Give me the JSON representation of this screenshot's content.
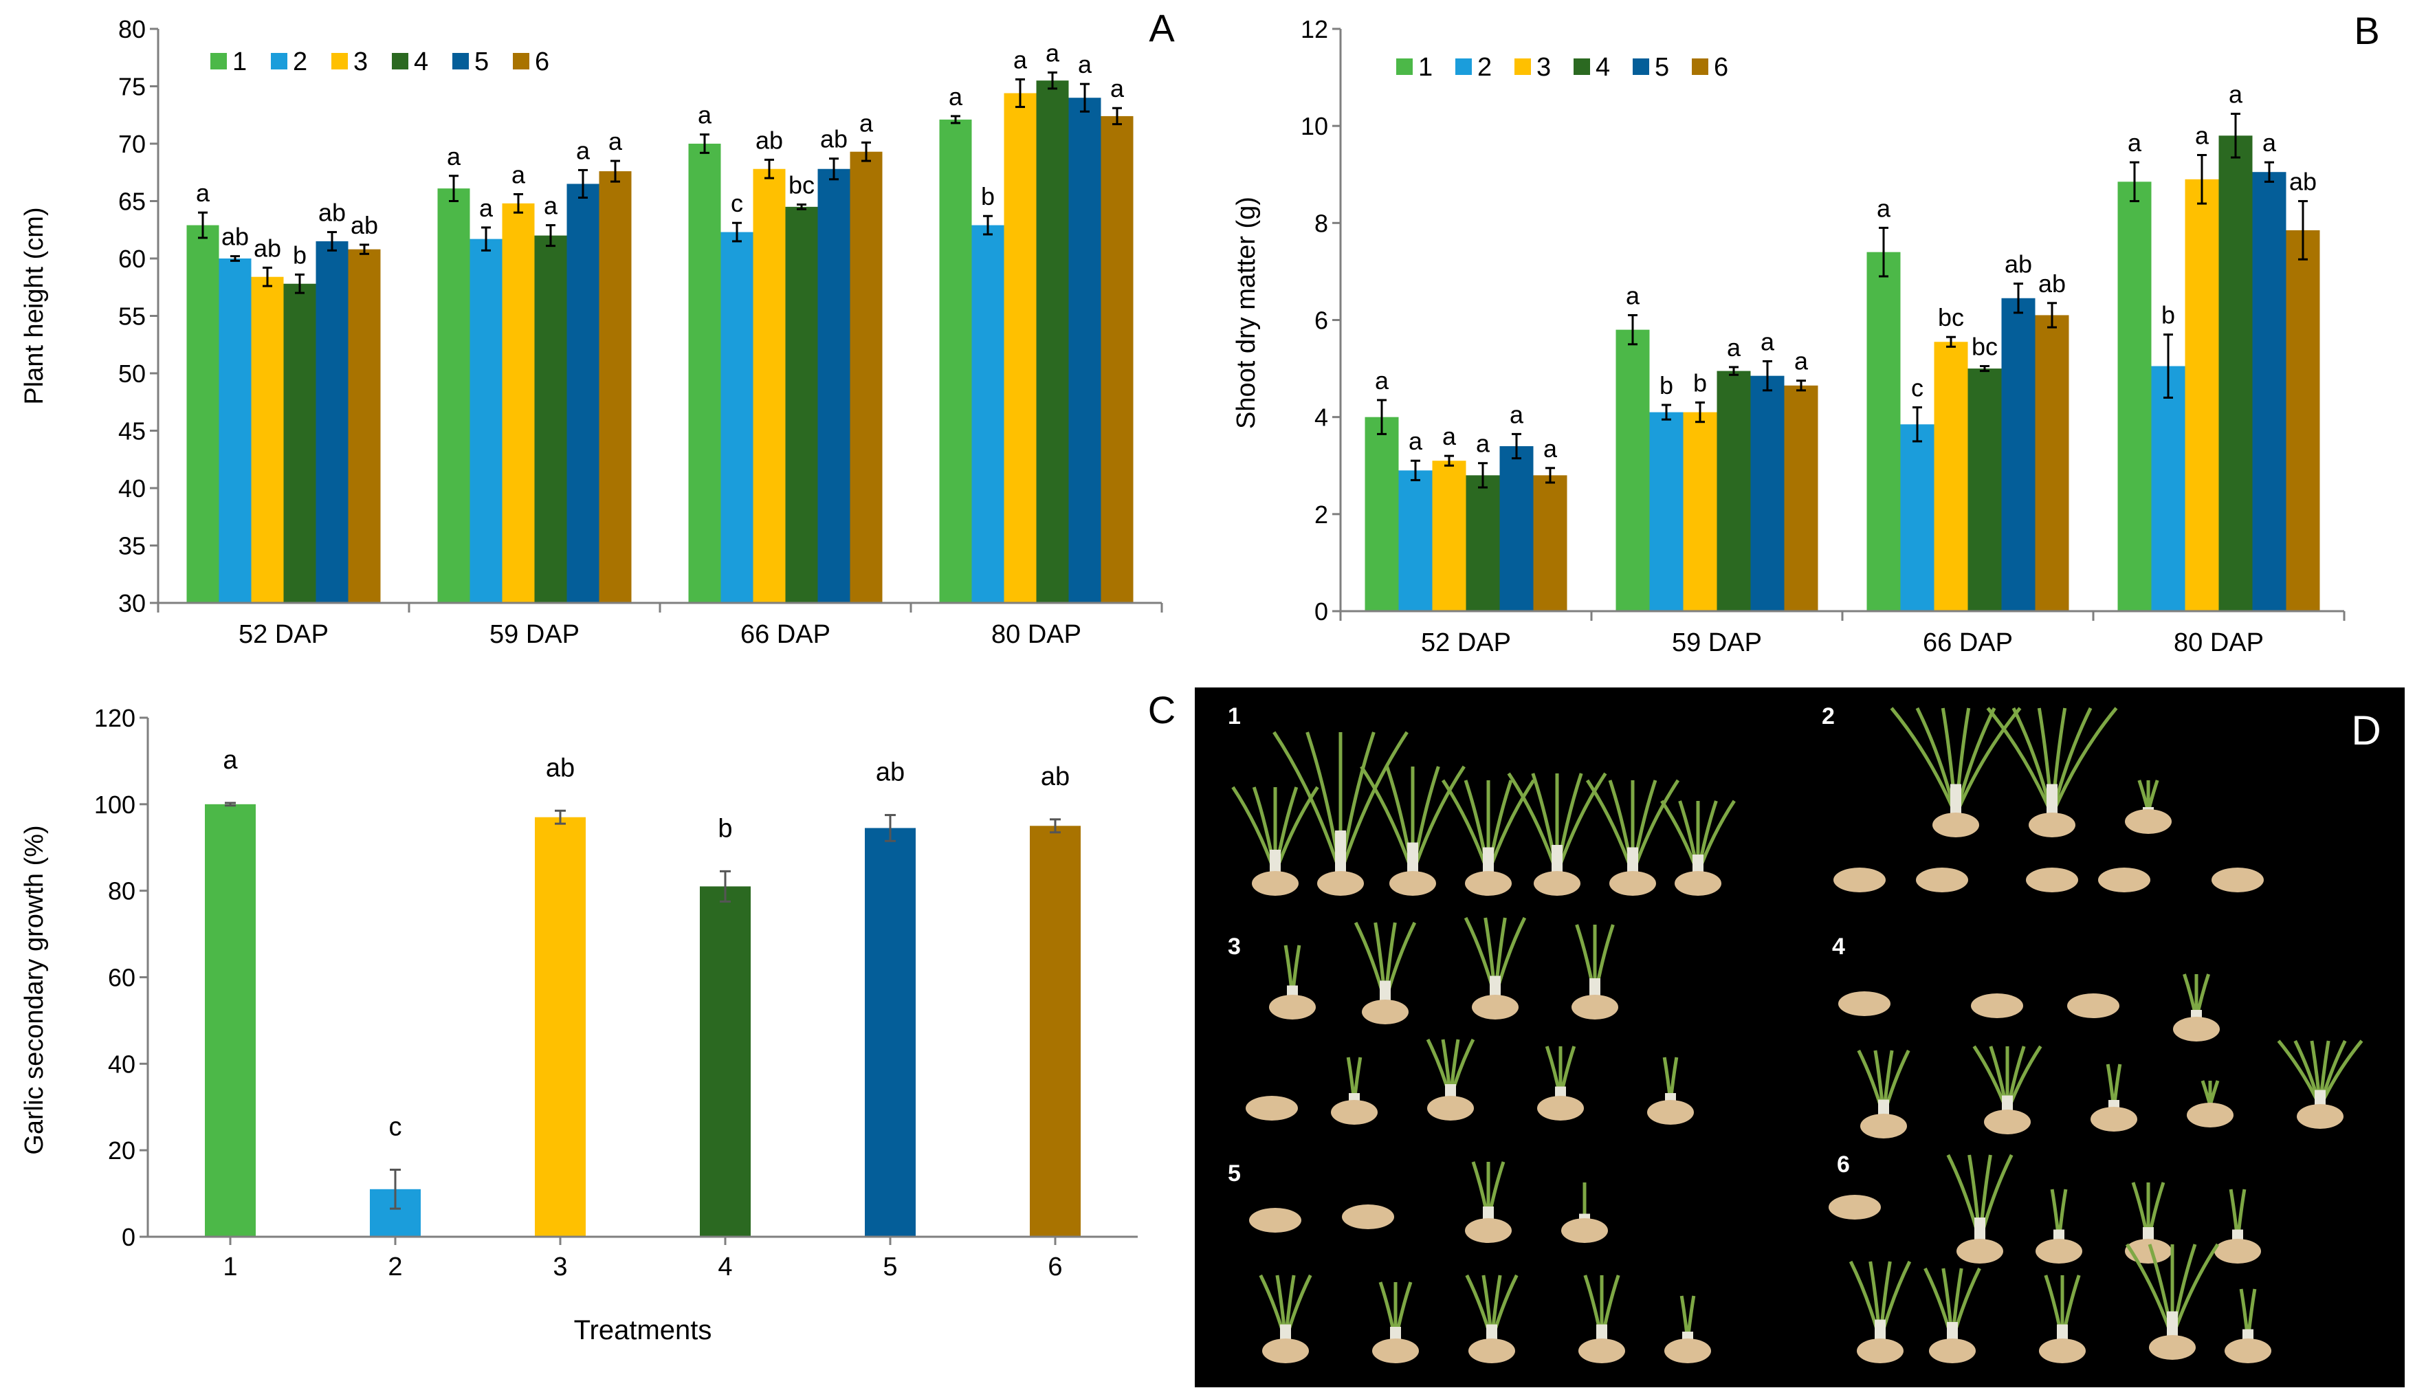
{
  "colors": {
    "t1": "#4CB848",
    "t2": "#1B9DDB",
    "t3": "#FFC000",
    "t4": "#2B6921",
    "t5": "#045E99",
    "t6": "#A97300",
    "axis": "#7f7f7f",
    "photo_bg": "#000000",
    "bulb": "#dcbf95",
    "sprout": "#7ea845"
  },
  "chart_data": [
    {
      "id": "A",
      "panel_label": "A",
      "type": "bar",
      "title": "",
      "xlabel": "",
      "ylabel": "Plant height (cm)",
      "ylim": [
        30,
        80
      ],
      "yticks": [
        "30",
        "35",
        "40",
        "45",
        "50",
        "55",
        "60",
        "65",
        "70",
        "75",
        "80"
      ],
      "legend_position": "top-left",
      "categories": [
        "52 DAP",
        "59 DAP",
        "66 DAP",
        "80 DAP"
      ],
      "series": [
        {
          "name": "1",
          "values": [
            62.9,
            66.1,
            70.0,
            72.1
          ],
          "errors": [
            1.1,
            1.1,
            0.8,
            0.3
          ],
          "letters": [
            "a",
            "a",
            "a",
            "a"
          ]
        },
        {
          "name": "2",
          "values": [
            60.0,
            61.7,
            62.3,
            62.9
          ],
          "errors": [
            0.2,
            1.0,
            0.8,
            0.8
          ],
          "letters": [
            "ab",
            "a",
            "c",
            "b"
          ]
        },
        {
          "name": "3",
          "values": [
            58.4,
            64.8,
            67.8,
            74.4
          ],
          "errors": [
            0.8,
            0.8,
            0.8,
            1.2
          ],
          "letters": [
            "ab",
            "a",
            "ab",
            "a"
          ]
        },
        {
          "name": "4",
          "values": [
            57.8,
            62.0,
            64.5,
            75.5
          ],
          "errors": [
            0.8,
            0.9,
            0.2,
            0.7
          ],
          "letters": [
            "b",
            "a",
            "bc",
            "a"
          ]
        },
        {
          "name": "5",
          "values": [
            61.5,
            66.5,
            67.8,
            74.0
          ],
          "errors": [
            0.8,
            1.2,
            0.9,
            1.2
          ],
          "letters": [
            "ab",
            "a",
            "ab",
            "a"
          ]
        },
        {
          "name": "6",
          "values": [
            60.8,
            67.6,
            69.3,
            72.4
          ],
          "errors": [
            0.4,
            0.9,
            0.8,
            0.7
          ],
          "letters": [
            "ab",
            "a",
            "a",
            "a"
          ]
        }
      ]
    },
    {
      "id": "B",
      "panel_label": "B",
      "type": "bar",
      "title": "",
      "xlabel": "",
      "ylabel": "Shoot dry matter (g)",
      "ylim": [
        0,
        12
      ],
      "yticks": [
        "0",
        "2",
        "4",
        "6",
        "8",
        "10",
        "12"
      ],
      "legend_position": "top-left",
      "categories": [
        "52 DAP",
        "59 DAP",
        "66 DAP",
        "80 DAP"
      ],
      "series": [
        {
          "name": "1",
          "values": [
            4.0,
            5.8,
            7.4,
            8.85
          ],
          "errors": [
            0.35,
            0.3,
            0.5,
            0.4
          ],
          "letters": [
            "a",
            "a",
            "a",
            "a"
          ]
        },
        {
          "name": "2",
          "values": [
            2.9,
            4.1,
            3.85,
            5.05
          ],
          "errors": [
            0.2,
            0.15,
            0.35,
            0.65
          ],
          "letters": [
            "a",
            "b",
            "c",
            "b"
          ]
        },
        {
          "name": "3",
          "values": [
            3.1,
            4.1,
            5.55,
            8.9
          ],
          "errors": [
            0.1,
            0.2,
            0.1,
            0.5
          ],
          "letters": [
            "a",
            "b",
            "bc",
            "a"
          ]
        },
        {
          "name": "4",
          "values": [
            2.8,
            4.95,
            5.0,
            9.8
          ],
          "errors": [
            0.25,
            0.08,
            0.05,
            0.45
          ],
          "letters": [
            "a",
            "a",
            "bc",
            "a"
          ]
        },
        {
          "name": "5",
          "values": [
            3.4,
            4.85,
            6.45,
            9.05
          ],
          "errors": [
            0.25,
            0.3,
            0.3,
            0.2
          ],
          "letters": [
            "a",
            "a",
            "ab",
            "a"
          ]
        },
        {
          "name": "6",
          "values": [
            2.8,
            4.65,
            6.1,
            7.85
          ],
          "errors": [
            0.15,
            0.1,
            0.25,
            0.6
          ],
          "letters": [
            "a",
            "a",
            "ab",
            "ab"
          ]
        }
      ]
    },
    {
      "id": "C",
      "panel_label": "C",
      "type": "bar",
      "title": "",
      "xlabel": "Treatments",
      "ylabel": "Garlic secondary growth (%)",
      "ylim": [
        0,
        120
      ],
      "yticks": [
        "0",
        "20",
        "40",
        "60",
        "80",
        "100",
        "120"
      ],
      "categories": [
        "1",
        "2",
        "3",
        "4",
        "5",
        "6"
      ],
      "values": [
        100,
        11,
        97,
        81,
        94.5,
        95
      ],
      "errors": [
        0.3,
        4.5,
        1.5,
        3.5,
        3.0,
        1.5
      ],
      "letters": [
        "a",
        "c",
        "ab",
        "b",
        "ab",
        "ab"
      ]
    }
  ],
  "photo_panel": {
    "panel_label": "D",
    "group_labels": [
      "1",
      "2",
      "3",
      "4",
      "5",
      "6"
    ]
  }
}
